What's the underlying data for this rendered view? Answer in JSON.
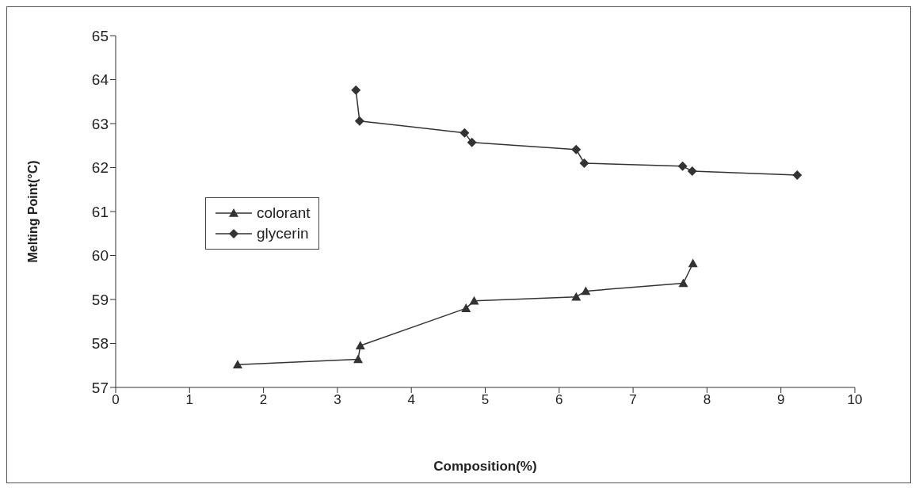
{
  "chart_data": {
    "type": "line",
    "xlabel": "Composition(%)",
    "ylabel": "Melting Point(°C)",
    "xlim": [
      0,
      10
    ],
    "xticks": [
      0,
      1,
      2,
      3,
      4,
      5,
      6,
      7,
      8,
      9,
      10
    ],
    "ylim": [
      57,
      65
    ],
    "yticks": [
      57,
      58,
      59,
      60,
      61,
      62,
      63,
      64,
      65
    ],
    "grid": false,
    "legend": "left",
    "line_style": "solid",
    "series": [
      {
        "name": "colorant",
        "color": "#333333",
        "marker": "triangle",
        "x": [
          1.65,
          3.28,
          3.31,
          4.74,
          4.85,
          6.23,
          6.36,
          7.68,
          7.81
        ],
        "values": [
          57.52,
          57.64,
          57.95,
          58.8,
          58.97,
          59.06,
          59.19,
          59.37,
          59.82
        ]
      },
      {
        "name": "glycerin",
        "color": "#333333",
        "marker": "diamond",
        "x": [
          3.25,
          3.3,
          4.72,
          4.82,
          6.23,
          6.34,
          7.67,
          7.8,
          9.22
        ],
        "values": [
          63.76,
          63.06,
          62.79,
          62.57,
          62.41,
          62.1,
          62.03,
          61.92,
          61.83
        ]
      }
    ]
  }
}
